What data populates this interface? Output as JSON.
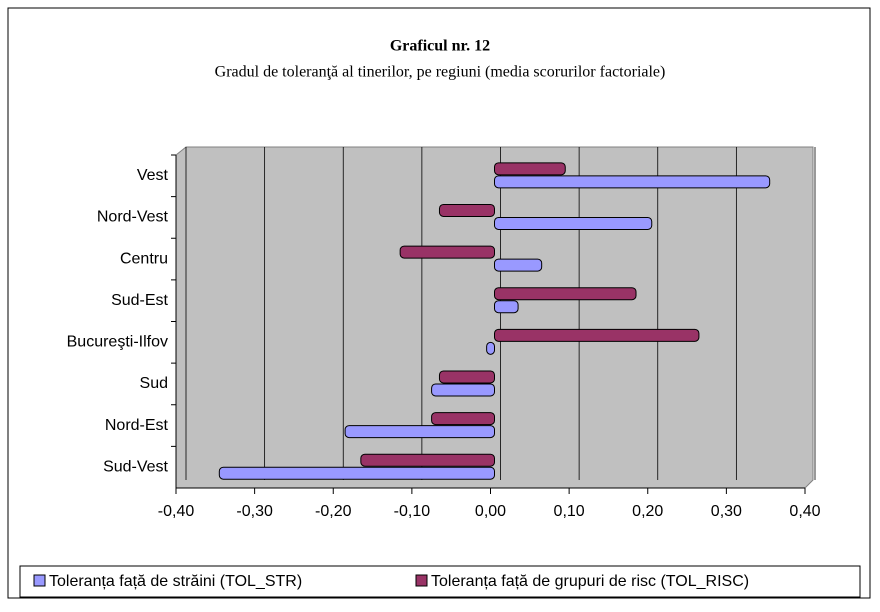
{
  "chart_data": {
    "type": "hbar",
    "title": "Graficul nr. 12",
    "subtitle": "Gradul de toleranţă al tinerilor, pe regiuni (media scorurilor factoriale)",
    "categories": [
      "Vest",
      "Nord-Vest",
      "Centru",
      "Sud-Est",
      "Bucureşti-Ilfov",
      "Sud",
      "Nord-Est",
      "Sud-Vest"
    ],
    "series": [
      {
        "name": "Toleranța față de străini (TOL_STR)",
        "color": "#9999ff",
        "values": [
          0.35,
          0.2,
          0.06,
          0.03,
          -0.01,
          -0.08,
          -0.19,
          -0.35
        ]
      },
      {
        "name": "Toleranța față de grupuri de risc (TOL_RISC)",
        "color": "#993366",
        "values": [
          0.09,
          -0.07,
          -0.12,
          0.18,
          0.26,
          -0.07,
          -0.08,
          -0.17
        ]
      }
    ],
    "xlim": [
      -0.4,
      0.4
    ],
    "xticks": [
      {
        "value": -0.4,
        "label": "-0,40"
      },
      {
        "value": -0.3,
        "label": "-0,30"
      },
      {
        "value": -0.2,
        "label": "-0,20"
      },
      {
        "value": -0.1,
        "label": "-0,10"
      },
      {
        "value": 0,
        "label": "0,00"
      },
      {
        "value": 0.1,
        "label": "0,10"
      },
      {
        "value": 0.2,
        "label": "0,20"
      },
      {
        "value": 0.3,
        "label": "0,30"
      },
      {
        "value": 0.4,
        "label": "0,40"
      }
    ],
    "grid": true
  }
}
